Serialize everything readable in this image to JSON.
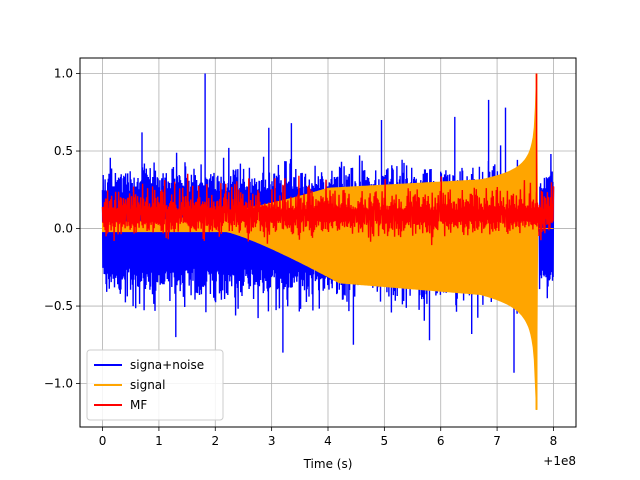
{
  "chart_data": {
    "type": "line",
    "title": "",
    "xlabel": "Time (s)",
    "ylabel": "",
    "x_offset_label": "+1e8",
    "xlim": [
      -0.4,
      8.4
    ],
    "ylim": [
      -1.28,
      1.1
    ],
    "xticks": [
      0,
      1,
      2,
      3,
      4,
      5,
      6,
      7,
      8
    ],
    "yticks": [
      -1.0,
      -0.5,
      0.0,
      0.5,
      1.0
    ],
    "ytick_labels": [
      "−1.0",
      "−0.5",
      "0.0",
      "0.5",
      "1.0"
    ],
    "grid": true,
    "legend_position": "lower-left",
    "x_range": [
      0,
      8
    ],
    "series": [
      {
        "name": "signa+noise",
        "color": "#0000ff",
        "description": "noisy band: signal plus noise, roughly +/-0.3 to +/-0.5 with spikes up to 1.0 and down to -0.93"
      },
      {
        "name": "signal",
        "color": "#ffa500",
        "description": "chirp with growing amplitude from ~0.0 at t=0 to peak ~1.0 / -1.17 near t=7.7, then zero"
      },
      {
        "name": "MF",
        "color": "#ff0000",
        "description": "matched filter output around 0.1, spiking to 1.0 near t=7.7"
      }
    ]
  }
}
